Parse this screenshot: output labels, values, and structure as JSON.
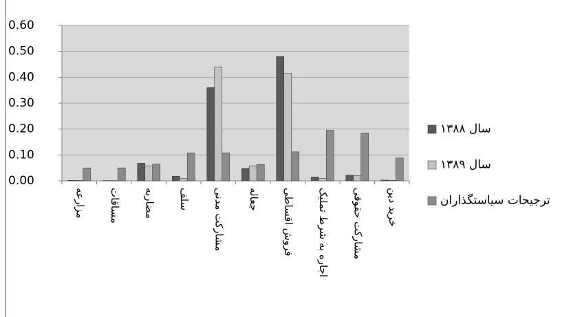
{
  "chart_data": {
    "type": "bar",
    "categories": [
      "مزارعه",
      "مساقات",
      "مضاربه",
      "سلف",
      "مشارکت مدنی",
      "جعاله",
      "فروش اقساطی",
      "اجاره به شرط تملیک",
      "مشارکت حقوقی",
      "خرید دین"
    ],
    "series": [
      {
        "name": "سال ۱۳۸۸",
        "color": "#595959",
        "values": [
          0.002,
          0.001,
          0.068,
          0.018,
          0.36,
          0.048,
          0.48,
          0.015,
          0.022,
          0.003
        ]
      },
      {
        "name": "سال ۱۳۸۹",
        "color": "#c4c4c4",
        "values": [
          0.002,
          0.001,
          0.058,
          0.01,
          0.44,
          0.058,
          0.415,
          0.01,
          0.02,
          0.002
        ]
      },
      {
        "name": "ترجیحات سیاستگذاران",
        "color": "#8c8c8c",
        "values": [
          0.05,
          0.05,
          0.065,
          0.108,
          0.108,
          0.063,
          0.112,
          0.195,
          0.185,
          0.088
        ]
      }
    ],
    "ylim": [
      0,
      0.6
    ],
    "yticks": [
      {
        "value": 0,
        "label": "0.00"
      },
      {
        "value": 0.1,
        "label": "0.10"
      },
      {
        "value": 0.2,
        "label": "0.20"
      },
      {
        "value": 0.3,
        "label": "0.30"
      },
      {
        "value": 0.4,
        "label": "0.40"
      },
      {
        "value": 0.5,
        "label": "0.50"
      },
      {
        "value": 0.6,
        "label": "0.60"
      }
    ],
    "grid": true,
    "legend": "right"
  }
}
